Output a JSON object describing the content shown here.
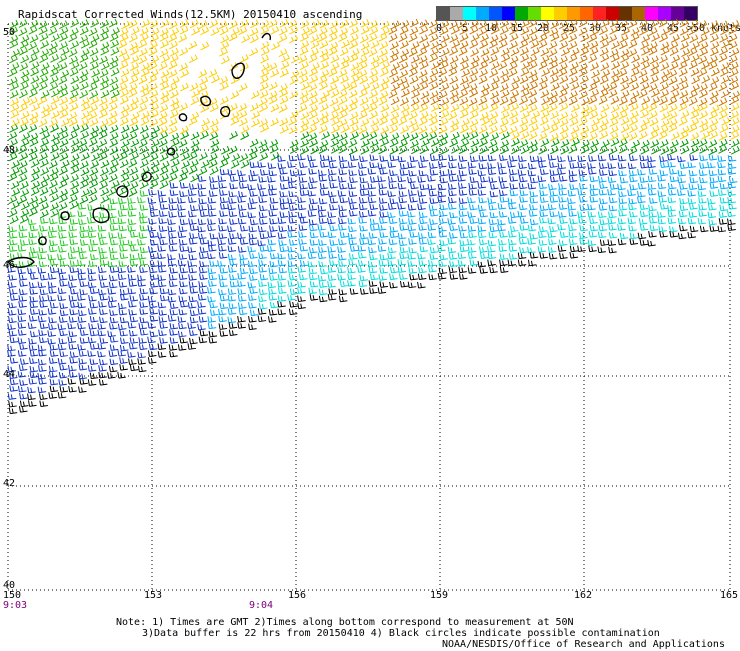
{
  "title": "Rapidscat Corrected Winds(12.5KM) 20150410 ascending",
  "legend": {
    "colors": [
      "#555555",
      "#aaaaaa",
      "#00ffff",
      "#00aaff",
      "#0055ff",
      "#0000ff",
      "#00aa00",
      "#66dd00",
      "#ffff00",
      "#ffcc00",
      "#ff9900",
      "#ff6600",
      "#ff2222",
      "#cc0000",
      "#663300",
      "#aa6600",
      "#ff00ff",
      "#aa00ff",
      "#660099",
      "#330066"
    ],
    "labels": [
      "0",
      "5",
      "10",
      "15",
      "20",
      "25",
      "30",
      "35",
      "40",
      "45",
      ">50 knots"
    ]
  },
  "axes": {
    "x_ticks": [
      "150",
      "153",
      "156",
      "159",
      "162",
      "165"
    ],
    "y_ticks": [
      "50",
      "48",
      "46",
      "44",
      "42",
      "40"
    ]
  },
  "times": {
    "left": "9:03",
    "center": "9:04"
  },
  "notes": {
    "line1": "Note: 1) Times are GMT 2)Times along bottom correspond to measurement at 50N",
    "line2": "3)Data buffer is 22 hrs from 20150410 4) Black circles indicate possible contamination",
    "line3": "NOAA/NESDIS/Office of Research and Applications"
  }
}
